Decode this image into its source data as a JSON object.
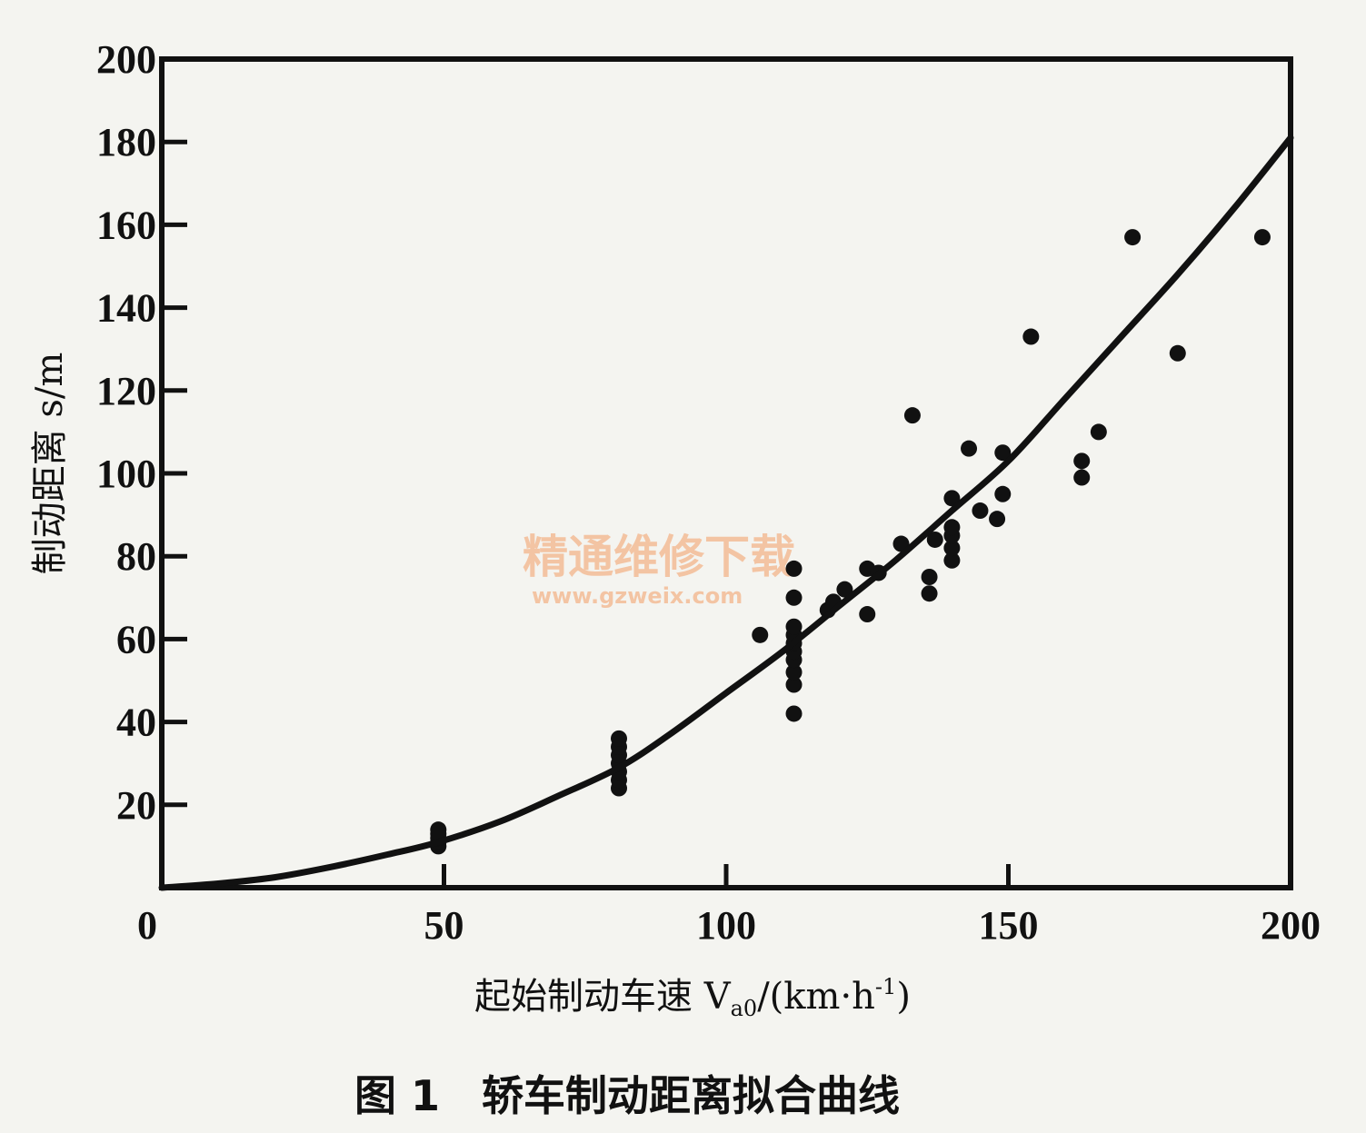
{
  "chart_data": {
    "type": "scatter",
    "title": "",
    "caption": "图 1　轿车制动距离拟合曲线",
    "xlabel": "起始制动车速 V",
    "xlabel_sub": "a0",
    "xlabel_unit_open": "/(km·h",
    "xlabel_sup": "-1",
    "xlabel_unit_close": ")",
    "ylabel": "制动距离 s/m",
    "xlim": [
      0,
      200
    ],
    "ylim": [
      0,
      200
    ],
    "x_ticks": [
      "0",
      "50",
      "100",
      "150",
      "200"
    ],
    "x_tick_values": [
      0,
      50,
      100,
      150,
      200
    ],
    "y_ticks": [
      "20",
      "40",
      "60",
      "80",
      "100",
      "120",
      "140",
      "160",
      "180",
      "200"
    ],
    "y_tick_values": [
      20,
      40,
      60,
      80,
      100,
      120,
      140,
      160,
      180,
      200
    ],
    "grid": false,
    "series": [
      {
        "kind": "points",
        "points": [
          [
            49,
            10
          ],
          [
            49,
            11
          ],
          [
            49,
            12
          ],
          [
            49,
            13
          ],
          [
            49,
            14
          ],
          [
            81,
            24
          ],
          [
            81,
            26
          ],
          [
            81,
            28
          ],
          [
            81,
            30
          ],
          [
            81,
            32
          ],
          [
            81,
            34
          ],
          [
            81,
            36
          ],
          [
            106,
            61
          ],
          [
            112,
            42
          ],
          [
            112,
            49
          ],
          [
            112,
            52
          ],
          [
            112,
            55
          ],
          [
            112,
            57
          ],
          [
            112,
            59
          ],
          [
            112,
            61
          ],
          [
            112,
            63
          ],
          [
            112,
            70
          ],
          [
            112,
            77
          ],
          [
            118,
            67
          ],
          [
            119,
            69
          ],
          [
            121,
            72
          ],
          [
            125,
            66
          ],
          [
            125,
            77
          ],
          [
            127,
            76
          ],
          [
            131,
            83
          ],
          [
            133,
            114
          ],
          [
            136,
            71
          ],
          [
            136,
            75
          ],
          [
            137,
            84
          ],
          [
            140,
            79
          ],
          [
            140,
            82
          ],
          [
            140,
            85
          ],
          [
            140,
            87
          ],
          [
            140,
            94
          ],
          [
            143,
            106
          ],
          [
            145,
            91
          ],
          [
            148,
            89
          ],
          [
            149,
            95
          ],
          [
            149,
            105
          ],
          [
            154,
            133
          ],
          [
            163,
            99
          ],
          [
            163,
            103
          ],
          [
            166,
            110
          ],
          [
            172,
            157
          ],
          [
            180,
            129
          ],
          [
            195,
            157
          ]
        ]
      },
      {
        "kind": "fit-curve",
        "x": [
          0,
          10,
          20,
          30,
          40,
          49,
          60,
          70,
          81,
          90,
          100,
          110,
          120,
          130,
          140,
          150,
          160,
          170,
          180,
          190,
          200
        ],
        "y": [
          0,
          1,
          2.5,
          5,
          8,
          11,
          16,
          22,
          29,
          37,
          47,
          57,
          68,
          79,
          91,
          103,
          118,
          133,
          148,
          164,
          181
        ]
      }
    ]
  },
  "watermark": {
    "text_cn": "精通维修下载",
    "url": "www.gzweix.com"
  }
}
